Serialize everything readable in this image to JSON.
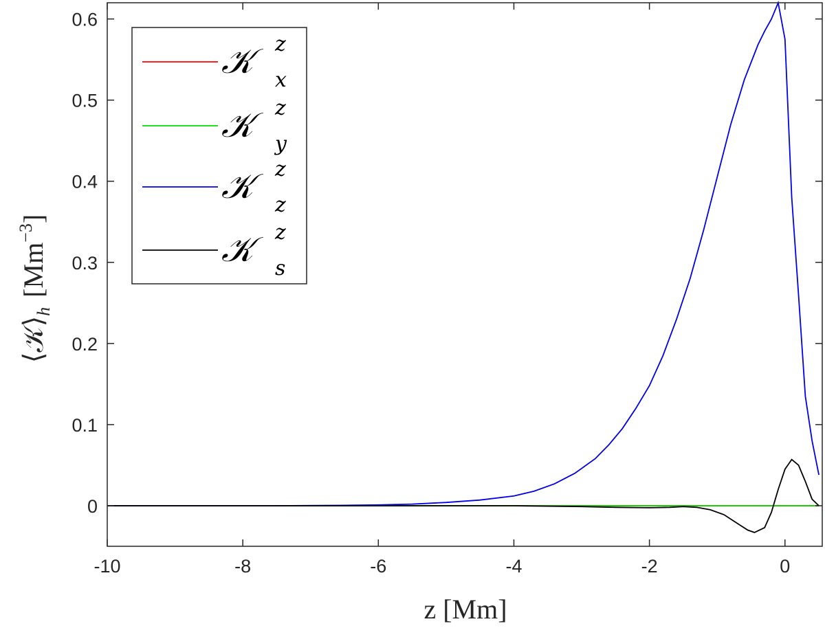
{
  "chart_data": {
    "type": "line",
    "xlabel": "z [Mm]",
    "ylabel": "⟨𝒦⟩",
    "ylabel_sub": "h",
    "ylabel_unit": "[Mm",
    "ylabel_unit_exp": "−3",
    "ylabel_unit_close": "]",
    "xlim": [
      -10,
      0.55
    ],
    "ylim": [
      -0.05,
      0.62
    ],
    "xticks": [
      "-10",
      "-8",
      "-6",
      "-4",
      "-2",
      "0"
    ],
    "yticks": [
      "0",
      "0.1",
      "0.2",
      "0.3",
      "0.4",
      "0.5",
      "0.6"
    ],
    "grid": false,
    "legend_position": "top-left",
    "series": [
      {
        "name": "𝒦",
        "superscript": "z",
        "subscript": "x",
        "color": "#ff0000",
        "x": [
          -10,
          -8,
          -6,
          -4,
          -2,
          0,
          0.5
        ],
        "y": [
          0,
          0,
          0,
          0,
          0,
          0,
          0
        ]
      },
      {
        "name": "𝒦",
        "superscript": "z",
        "subscript": "y",
        "color": "#00dd00",
        "x": [
          -10,
          -8,
          -6,
          -4,
          -2,
          0,
          0.5
        ],
        "y": [
          0,
          0,
          0,
          0,
          0,
          0,
          0
        ]
      },
      {
        "name": "𝒦",
        "superscript": "z",
        "subscript": "z",
        "color": "#0000ee",
        "x": [
          -10,
          -7.5,
          -6.5,
          -6,
          -5.5,
          -5,
          -4.5,
          -4,
          -3.7,
          -3.4,
          -3.1,
          -2.8,
          -2.6,
          -2.4,
          -2.2,
          -2.0,
          -1.8,
          -1.6,
          -1.4,
          -1.2,
          -1.0,
          -0.8,
          -0.6,
          -0.4,
          -0.3,
          -0.2,
          -0.1,
          0.0,
          0.1,
          0.2,
          0.3,
          0.4,
          0.5
        ],
        "y": [
          0,
          0,
          0.0005,
          0.001,
          0.002,
          0.004,
          0.007,
          0.012,
          0.018,
          0.027,
          0.04,
          0.058,
          0.075,
          0.095,
          0.12,
          0.148,
          0.185,
          0.23,
          0.28,
          0.34,
          0.405,
          0.47,
          0.525,
          0.568,
          0.585,
          0.6,
          0.62,
          0.575,
          0.38,
          0.26,
          0.135,
          0.08,
          0.038
        ]
      },
      {
        "name": "𝒦",
        "superscript": "z",
        "subscript": "s",
        "color": "#000000",
        "x": [
          -10,
          -4,
          -3.5,
          -3,
          -2.5,
          -2,
          -1.7,
          -1.5,
          -1.3,
          -1.1,
          -0.9,
          -0.7,
          -0.55,
          -0.45,
          -0.3,
          -0.2,
          -0.1,
          0.0,
          0.1,
          0.2,
          0.3,
          0.4,
          0.5
        ],
        "y": [
          0,
          0,
          -0.0005,
          -0.001,
          -0.002,
          -0.0025,
          -0.002,
          -0.001,
          -0.002,
          -0.005,
          -0.011,
          -0.022,
          -0.03,
          -0.033,
          -0.027,
          -0.008,
          0.02,
          0.045,
          0.057,
          0.05,
          0.03,
          0.008,
          0.0
        ]
      }
    ]
  }
}
